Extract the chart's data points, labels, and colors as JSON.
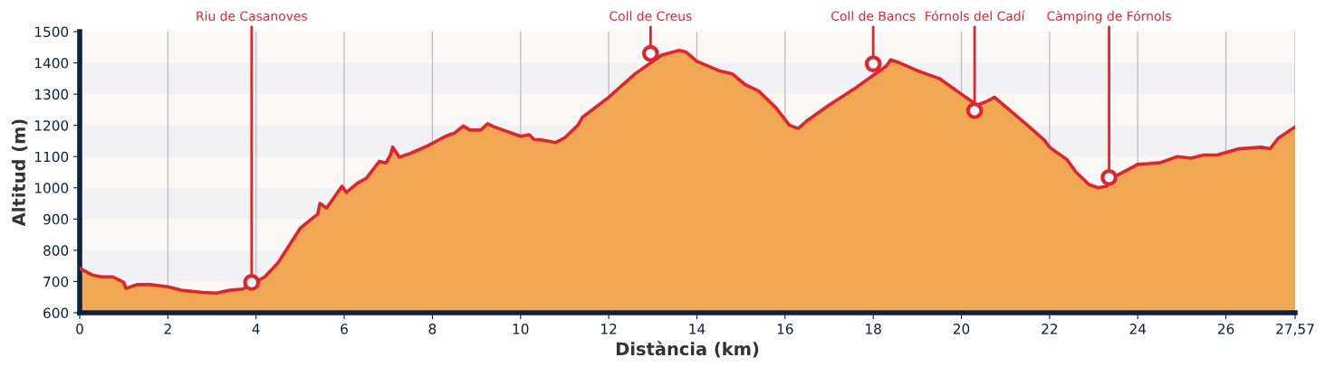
{
  "chart_data": {
    "type": "area",
    "xlabel": "Distància (km)",
    "ylabel": "Altitud (m)",
    "series": [
      {
        "color": "#f0a852",
        "x": [
          0,
          0.3,
          0.5,
          0.75,
          1.0,
          1.05,
          1.3,
          1.6,
          2.0,
          2.3,
          2.8,
          3.1,
          3.4,
          3.7,
          4.2,
          4.5,
          5.0,
          5.3,
          5.4,
          5.45,
          5.6,
          5.95,
          6.05,
          6.3,
          6.5,
          6.8,
          6.95,
          7.05,
          7.1,
          7.25,
          7.5,
          7.9,
          8.3,
          8.5,
          8.7,
          8.85,
          9.1,
          9.25,
          9.4,
          10.0,
          10.2,
          10.3,
          10.5,
          10.8,
          11.0,
          11.3,
          11.4,
          12.0,
          12.6,
          13.2,
          13.6,
          13.75,
          14.0,
          14.5,
          14.8,
          15.1,
          15.4,
          15.8,
          16.1,
          16.3,
          16.5,
          17.0,
          17.6,
          18.3,
          18.4,
          18.6,
          19.0,
          19.5,
          19.8,
          20.0,
          20.2,
          20.35,
          20.55,
          20.75,
          21.0,
          21.5,
          21.9,
          22.0,
          22.4,
          22.6,
          22.9,
          23.1,
          23.3,
          23.4,
          24.0,
          24.5,
          24.9,
          25.2,
          25.5,
          25.8,
          26.3,
          26.8,
          27.0,
          27.2,
          27.57
        ],
        "values": [
          742,
          720,
          715,
          715,
          697,
          678,
          690,
          690,
          683,
          672,
          665,
          663,
          672,
          676,
          715,
          760,
          870,
          905,
          915,
          950,
          935,
          1005,
          985,
          1015,
          1030,
          1085,
          1080,
          1105,
          1130,
          1098,
          1110,
          1135,
          1165,
          1175,
          1198,
          1185,
          1185,
          1205,
          1195,
          1165,
          1170,
          1155,
          1153,
          1145,
          1160,
          1200,
          1225,
          1290,
          1365,
          1425,
          1440,
          1435,
          1405,
          1375,
          1365,
          1330,
          1310,
          1255,
          1200,
          1190,
          1215,
          1265,
          1320,
          1390,
          1410,
          1400,
          1375,
          1350,
          1320,
          1300,
          1280,
          1265,
          1275,
          1290,
          1260,
          1200,
          1150,
          1130,
          1090,
          1050,
          1010,
          1000,
          1005,
          1030,
          1075,
          1080,
          1100,
          1095,
          1105,
          1105,
          1125,
          1130,
          1125,
          1160,
          1195
        ]
      },
      {
        "type": "scatter",
        "color": "#e3232c",
        "x": [
          3.9,
          12.95,
          18.0,
          20.3,
          23.35
        ],
        "values": [
          697,
          1430,
          1397,
          1247,
          1033
        ]
      }
    ],
    "annotations": [
      {
        "text": "Riu de Casanoves",
        "x": 3.9,
        "y": 697
      },
      {
        "text": "Coll de Creus",
        "x": 12.95,
        "y": 1430
      },
      {
        "text": "Coll de Bancs",
        "x": 18.0,
        "y": 1397
      },
      {
        "text": "Fórnols del Cadí",
        "x": 20.3,
        "y": 1247
      },
      {
        "text": "Càmping de Fórnols",
        "x": 23.35,
        "y": 1033
      }
    ],
    "xlim": [
      0,
      27.57
    ],
    "ylim": [
      600,
      1500
    ],
    "xticks": [
      0,
      2,
      4,
      6,
      8,
      10,
      12,
      14,
      16,
      18,
      20,
      22,
      24,
      26,
      {
        "value": 27.57,
        "label": "27,57"
      }
    ],
    "yticks": [
      600,
      700,
      800,
      900,
      1000,
      1100,
      1200,
      1300,
      1400,
      1500
    ],
    "grid": "x",
    "line_style": "solid"
  }
}
